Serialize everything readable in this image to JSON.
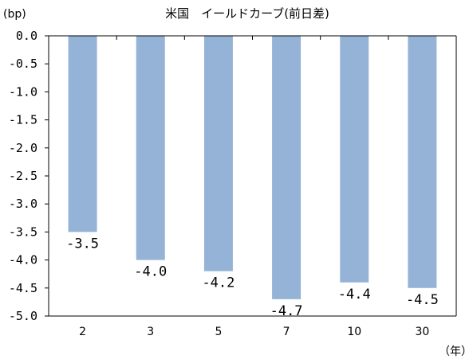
{
  "chart_data": {
    "type": "bar",
    "title": "米国　イールドカーブ(前日差)",
    "ylabel": "(bp)",
    "xlabel": "（年）",
    "categories": [
      "2",
      "3",
      "5",
      "7",
      "10",
      "30"
    ],
    "values": [
      -3.5,
      -4.0,
      -4.2,
      -4.7,
      -4.4,
      -4.5
    ],
    "data_labels": [
      "-3.5",
      "-4.0",
      "-4.2",
      "-4.7",
      "-4.4",
      "-4.5"
    ],
    "ylim": [
      -5.0,
      0.0
    ],
    "yticks": [
      "0.0",
      "-0.5",
      "-1.0",
      "-1.5",
      "-2.0",
      "-2.5",
      "-3.0",
      "-3.5",
      "-4.0",
      "-4.5",
      "-5.0"
    ],
    "bar_color": "#95b3d7",
    "grid": false,
    "legend": "none"
  }
}
